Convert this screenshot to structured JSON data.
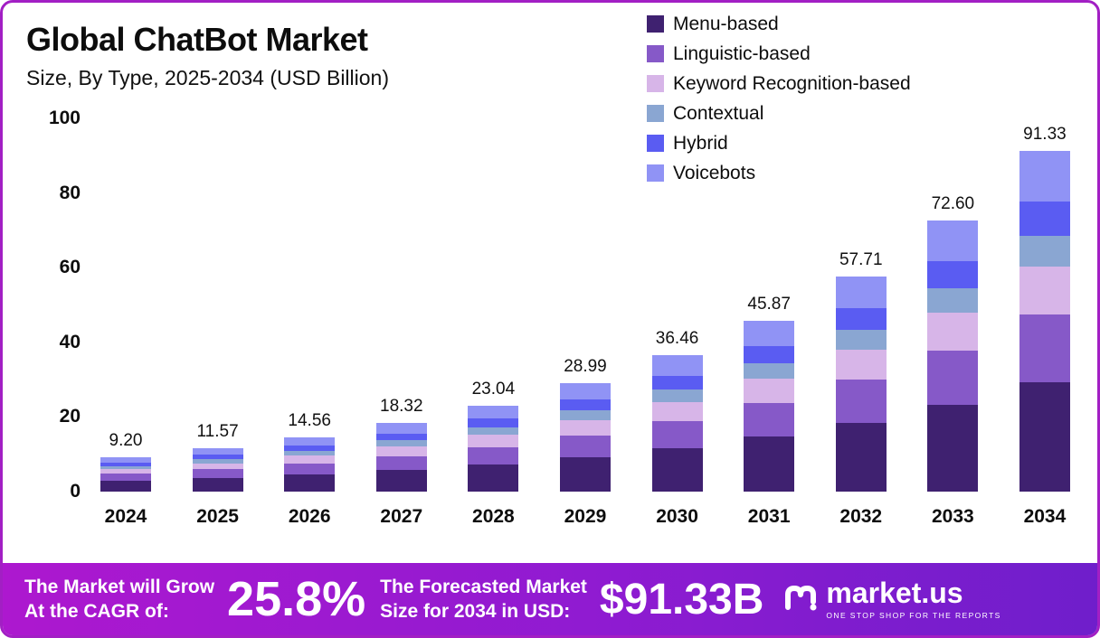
{
  "header": {
    "title": "Global ChatBot Market",
    "subtitle": "Size, By Type, 2025-2034 (USD Billion)"
  },
  "chart_data": {
    "type": "bar",
    "stacked": true,
    "title": "Global ChatBot Market",
    "subtitle": "Size, By Type, 2025-2034 (USD Billion)",
    "categories": [
      "2024",
      "2025",
      "2026",
      "2027",
      "2028",
      "2029",
      "2030",
      "2031",
      "2032",
      "2033",
      "2034"
    ],
    "totals": [
      9.2,
      11.57,
      14.56,
      18.32,
      23.04,
      28.99,
      36.46,
      45.87,
      57.71,
      72.6,
      91.33
    ],
    "total_labels": [
      "9.20",
      "11.57",
      "14.56",
      "18.32",
      "23.04",
      "28.99",
      "36.46",
      "45.87",
      "57.71",
      "72.60",
      "91.33"
    ],
    "ylim": [
      0,
      100
    ],
    "yticks": [
      "100",
      "80",
      "60",
      "40",
      "20",
      "0"
    ],
    "grid": false,
    "legend_position": "top-right",
    "series": [
      {
        "name": "Menu-based",
        "color": "#3f2170",
        "values": [
          2.94,
          3.7,
          4.66,
          5.86,
          7.37,
          9.28,
          11.67,
          14.68,
          18.47,
          23.23,
          29.23
        ]
      },
      {
        "name": "Linguistic-based",
        "color": "#8659c8",
        "values": [
          1.84,
          2.31,
          2.91,
          3.66,
          4.61,
          5.8,
          7.29,
          9.17,
          11.54,
          14.52,
          18.27
        ]
      },
      {
        "name": "Keyword Recognition-based",
        "color": "#d7b5e8",
        "values": [
          1.29,
          1.62,
          2.04,
          2.56,
          3.23,
          4.06,
          5.1,
          6.42,
          8.08,
          10.16,
          12.79
        ]
      },
      {
        "name": "Contextual",
        "color": "#8aa6d2",
        "values": [
          0.83,
          1.04,
          1.31,
          1.65,
          2.07,
          2.61,
          3.28,
          4.13,
          5.19,
          6.53,
          8.22
        ]
      },
      {
        "name": "Hybrid",
        "color": "#5a5cf2",
        "values": [
          0.92,
          1.16,
          1.46,
          1.83,
          2.3,
          2.9,
          3.65,
          4.59,
          5.77,
          7.26,
          9.13
        ]
      },
      {
        "name": "Voicebots",
        "color": "#9093f5",
        "values": [
          1.38,
          1.74,
          2.18,
          2.75,
          3.46,
          4.35,
          5.47,
          6.88,
          8.66,
          10.89,
          13.7
        ]
      }
    ]
  },
  "banner": {
    "cagr_label_line1": "The Market will Grow",
    "cagr_label_line2": "At the CAGR of:",
    "cagr_value": "25.8%",
    "forecast_label_line1": "The Forecasted Market",
    "forecast_label_line2": "Size for 2034 in USD:",
    "forecast_value": "$91.33B",
    "brand": "market.us",
    "brand_tagline": "ONE STOP SHOP FOR THE REPORTS"
  }
}
